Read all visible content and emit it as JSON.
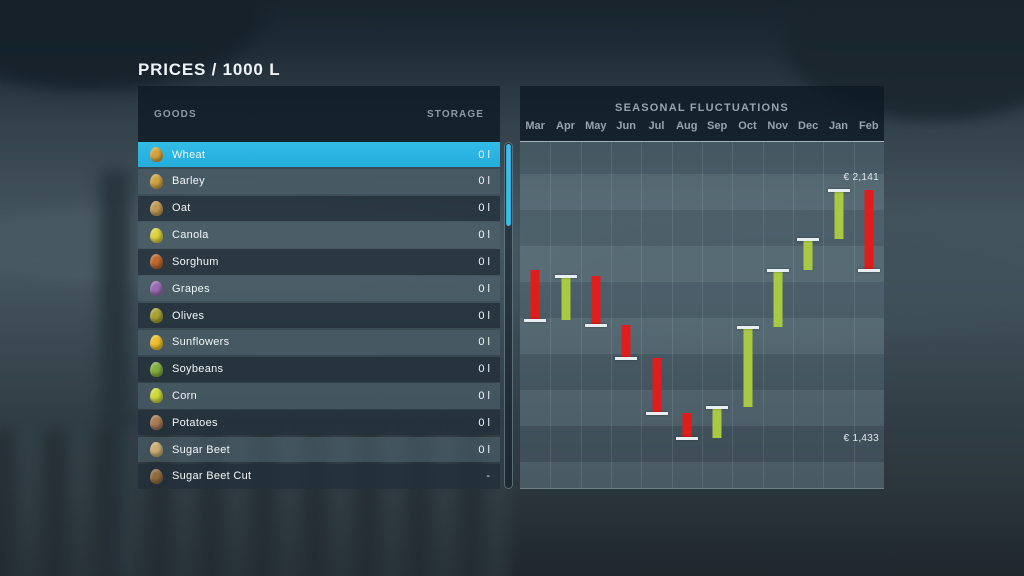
{
  "page_title": "PRICES / 1000 L",
  "goods": {
    "header": {
      "goods_label": "GOODS",
      "storage_label": "STORAGE"
    },
    "rows": [
      {
        "label": "Wheat",
        "value": "0 l",
        "icon": "wheat-icon",
        "icon_color": "#d7a43c",
        "selected": true
      },
      {
        "label": "Barley",
        "value": "0 l",
        "icon": "barley-icon",
        "icon_color": "#cfa544"
      },
      {
        "label": "Oat",
        "value": "0 l",
        "icon": "oat-icon",
        "icon_color": "#c39a55"
      },
      {
        "label": "Canola",
        "value": "0 l",
        "icon": "canola-icon",
        "icon_color": "#ddd23f"
      },
      {
        "label": "Sorghum",
        "value": "0 l",
        "icon": "sorghum-icon",
        "icon_color": "#c06a2d"
      },
      {
        "label": "Grapes",
        "value": "0 l",
        "icon": "grapes-icon",
        "icon_color": "#9a6cb4"
      },
      {
        "label": "Olives",
        "value": "0 l",
        "icon": "olives-icon",
        "icon_color": "#a9a335"
      },
      {
        "label": "Sunflowers",
        "value": "0 l",
        "icon": "sunflower-icon",
        "icon_color": "#f0c02c"
      },
      {
        "label": "Soybeans",
        "value": "0 l",
        "icon": "soybean-icon",
        "icon_color": "#85b03f"
      },
      {
        "label": "Corn",
        "value": "0 l",
        "icon": "corn-icon",
        "icon_color": "#cfd93e"
      },
      {
        "label": "Potatoes",
        "value": "0 l",
        "icon": "potato-icon",
        "icon_color": "#a87c54"
      },
      {
        "label": "Sugar Beet",
        "value": "0 l",
        "icon": "sugar-beet-icon",
        "icon_color": "#c9ae74"
      },
      {
        "label": "Sugar Beet Cut",
        "value": "-",
        "icon": "sugar-beet-cut-icon",
        "icon_color": "#8f6b40"
      }
    ]
  },
  "scrollbar": {
    "thumb_position": "top"
  },
  "chart_data": {
    "type": "candlestick",
    "title": "SEASONAL FLUCTUATIONS",
    "unit": "EUR per 1000 L",
    "months": [
      "Mar",
      "Apr",
      "May",
      "Jun",
      "Jul",
      "Aug",
      "Sep",
      "Oct",
      "Nov",
      "Dec",
      "Jan",
      "Feb"
    ],
    "series": [
      {
        "month": "Mar",
        "open": 1913,
        "close": 1770,
        "direction": "down"
      },
      {
        "month": "Apr",
        "open": 1770,
        "close": 1895,
        "direction": "up"
      },
      {
        "month": "May",
        "open": 1895,
        "close": 1755,
        "direction": "down"
      },
      {
        "month": "Jun",
        "open": 1755,
        "close": 1660,
        "direction": "down"
      },
      {
        "month": "Jul",
        "open": 1660,
        "close": 1505,
        "direction": "down"
      },
      {
        "month": "Aug",
        "open": 1505,
        "close": 1433,
        "direction": "down"
      },
      {
        "month": "Sep",
        "open": 1433,
        "close": 1520,
        "direction": "up"
      },
      {
        "month": "Oct",
        "open": 1520,
        "close": 1750,
        "direction": "up"
      },
      {
        "month": "Nov",
        "open": 1750,
        "close": 1913,
        "direction": "up"
      },
      {
        "month": "Dec",
        "open": 1913,
        "close": 2000,
        "direction": "up"
      },
      {
        "month": "Jan",
        "open": 2000,
        "close": 2141,
        "direction": "up"
      },
      {
        "month": "Feb",
        "open": 2141,
        "close": 1913,
        "direction": "down"
      }
    ],
    "max_value": 2141,
    "min_value": 1433,
    "max_label": "€ 2,141",
    "min_label": "€ 1,433",
    "ylim": [
      1290,
      2278
    ],
    "grid": true,
    "colors": {
      "up": "#a9c943",
      "down": "#df1d1d",
      "tick": "#e8eff3",
      "selected_row": "#2ab4e2"
    }
  }
}
